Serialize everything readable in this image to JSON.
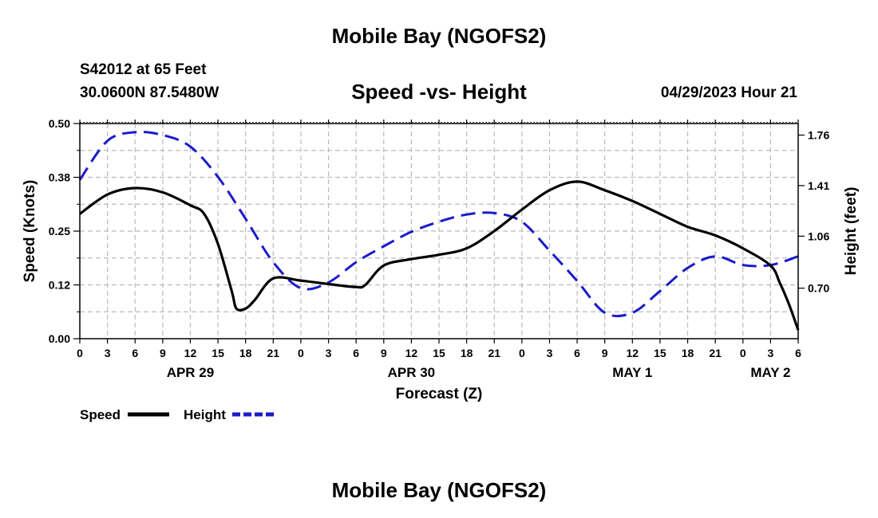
{
  "header": {
    "title": "Mobile Bay (NGOFS2)",
    "station": "S42012 at 65 Feet",
    "coordinates": "30.0600N  87.5480W",
    "subtitle": "Speed -vs- Height",
    "datetime": "04/29/2023 Hour 21"
  },
  "footer": {
    "title": "Mobile Bay (NGOFS2)"
  },
  "colors": {
    "speed": "#000000",
    "height": "#1a1acc",
    "grid": "#bbbbbb"
  },
  "chart_data": {
    "type": "line",
    "title": "Speed -vs- Height",
    "xlabel": "Forecast (Z)",
    "ylabel": "Speed (Knots)",
    "y2label": "Height (feet)",
    "x_range": [
      0,
      78
    ],
    "x_ticks": [
      0,
      3,
      6,
      9,
      12,
      15,
      18,
      21,
      24,
      27,
      30,
      33,
      36,
      39,
      42,
      45,
      48,
      51,
      54,
      57,
      60,
      63,
      66,
      69,
      72,
      75,
      78
    ],
    "x_tick_labels": [
      "0",
      "3",
      "6",
      "9",
      "12",
      "15",
      "18",
      "21",
      "0",
      "3",
      "6",
      "9",
      "12",
      "15",
      "18",
      "21",
      "0",
      "3",
      "6",
      "9",
      "12",
      "15",
      "18",
      "21",
      "0",
      "3",
      "6"
    ],
    "date_labels": [
      {
        "label": "APR 29",
        "x": 12
      },
      {
        "label": "APR 30",
        "x": 36
      },
      {
        "label": "MAY 1",
        "x": 60
      },
      {
        "label": "MAY 2",
        "x": 75
      }
    ],
    "ylim": [
      0,
      0.5
    ],
    "y_ticks": [
      0,
      0.125,
      0.25,
      0.375,
      0.5
    ],
    "y_tick_labels": [
      "0.00",
      "0.12",
      "0.25",
      "0.38",
      "0.50"
    ],
    "y2lim": [
      0.35,
      1.84
    ],
    "y2_ticks": [
      0.7,
      1.06,
      1.41,
      1.76
    ],
    "y2_tick_labels": [
      "0.70",
      "1.06",
      "1.41",
      "1.76"
    ],
    "series": [
      {
        "name": "Speed",
        "axis": "left",
        "style": "solid",
        "x": [
          0,
          3,
          6,
          9,
          12,
          13.5,
          15,
          16.5,
          17,
          18,
          19,
          21,
          24,
          27,
          30,
          31,
          33,
          36,
          39,
          42,
          45,
          48,
          51,
          54,
          57,
          60,
          63,
          66,
          69,
          72,
          75,
          76,
          77,
          78
        ],
        "values": [
          0.29,
          0.335,
          0.35,
          0.34,
          0.31,
          0.29,
          0.22,
          0.11,
          0.07,
          0.07,
          0.09,
          0.14,
          0.135,
          0.127,
          0.12,
          0.125,
          0.17,
          0.185,
          0.195,
          0.21,
          0.25,
          0.3,
          0.345,
          0.365,
          0.345,
          0.32,
          0.29,
          0.26,
          0.24,
          0.21,
          0.17,
          0.13,
          0.08,
          0.02
        ]
      },
      {
        "name": "Height",
        "axis": "right",
        "style": "dashed",
        "x": [
          0,
          3,
          6,
          9,
          12,
          15,
          18,
          21,
          24,
          27,
          30,
          33,
          36,
          39,
          42,
          45,
          48,
          51,
          54,
          57,
          60,
          63,
          66,
          69,
          72,
          75,
          78
        ],
        "values": [
          1.45,
          1.72,
          1.78,
          1.76,
          1.68,
          1.47,
          1.18,
          0.88,
          0.7,
          0.74,
          0.88,
          0.99,
          1.09,
          1.16,
          1.21,
          1.22,
          1.16,
          0.96,
          0.75,
          0.53,
          0.53,
          0.68,
          0.84,
          0.92,
          0.86,
          0.86,
          0.92
        ]
      }
    ],
    "legend": {
      "position": "bottom-left",
      "entries": [
        "Speed",
        "Height"
      ]
    }
  }
}
